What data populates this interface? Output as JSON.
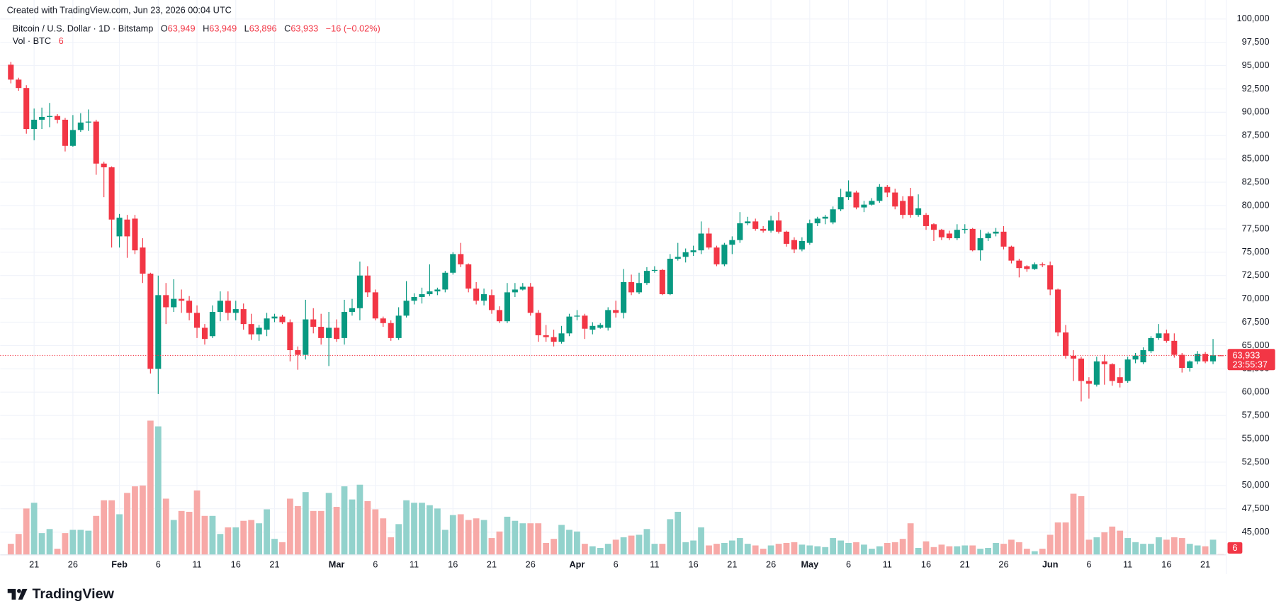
{
  "header": {
    "created": "Created with TradingView.com, Jun 23, 2026 00:04 UTC",
    "symbol": "Bitcoin / U.S. Dollar · 1D · Bitstamp",
    "ohlc": [
      {
        "label": "O",
        "value": "63,949"
      },
      {
        "label": "H",
        "value": "63,949"
      },
      {
        "label": "L",
        "value": "63,896"
      },
      {
        "label": "C",
        "value": "63,933"
      }
    ],
    "change": "−16 (−0.02%)",
    "volume_title": "Vol · BTC",
    "volume_value": "6",
    "last_price": "63,933",
    "countdown": "23:55:37",
    "volume_badge": "6"
  },
  "chart_data": {
    "type": "candlestick",
    "open": [
      95100,
      93500,
      92600,
      88200,
      89200,
      89500,
      89600,
      89200,
      86400,
      88100,
      88900,
      89000,
      84500,
      84100,
      76700,
      78500,
      78600,
      75500,
      72700,
      62500,
      70400,
      69100,
      70000,
      69800,
      68500,
      66900,
      66000,
      68600,
      69800,
      68500,
      68900,
      67300,
      66200,
      66700,
      67900,
      68100,
      67500,
      64500,
      64000,
      67800,
      67000,
      65800,
      66900,
      65800,
      68600,
      69000,
      72500,
      70700,
      67900,
      67400,
      65800,
      68200,
      69800,
      70200,
      70500,
      70800,
      71000,
      72800,
      74800,
      73700,
      71100,
      69800,
      70400,
      68800,
      67600,
      70700,
      71000,
      71300,
      68500,
      66100,
      65900,
      65400,
      66300,
      68100,
      68200,
      66700,
      66900,
      66900,
      68800,
      68500,
      71800,
      70700,
      71700,
      73000,
      73100,
      70500,
      74300,
      74500,
      75000,
      75200,
      77000,
      75500,
      73700,
      75800,
      76300,
      78100,
      78300,
      77500,
      77300,
      78400,
      77200,
      76300,
      75300,
      76000,
      78100,
      78600,
      78200,
      79600,
      80900,
      81400,
      79800,
      80100,
      80500,
      82000,
      81400,
      80500,
      81000,
      79000,
      79000,
      78000,
      77400,
      77000,
      76500,
      77400,
      77500,
      75200,
      76500,
      77000,
      77200,
      75600,
      74100,
      73500,
      73200,
      73700,
      73600,
      71000,
      66400,
      63900,
      63600,
      61200,
      60800,
      63300,
      63000,
      61600,
      61200,
      63500,
      63200,
      64400,
      65800,
      66300,
      65500,
      64000,
      62600,
      63300,
      64100,
      63300,
      63949
    ],
    "high": [
      95400,
      93700,
      92900,
      90400,
      90500,
      91000,
      89800,
      89400,
      89700,
      89900,
      90300,
      89200,
      84700,
      84200,
      79100,
      79000,
      79000,
      76500,
      72800,
      72500,
      71700,
      72100,
      71000,
      70300,
      69300,
      67300,
      69300,
      70800,
      70800,
      69800,
      69500,
      68400,
      67200,
      68500,
      68400,
      68300,
      67800,
      64900,
      69900,
      69000,
      68400,
      68600,
      67800,
      69900,
      70000,
      74000,
      73500,
      71000,
      68100,
      67700,
      69100,
      71900,
      70600,
      71200,
      73700,
      71200,
      73000,
      75000,
      76000,
      73800,
      71800,
      71100,
      71000,
      69200,
      71700,
      71700,
      71700,
      71700,
      68800,
      67200,
      66700,
      67100,
      68400,
      68800,
      68400,
      67500,
      67400,
      69100,
      69800,
      73200,
      72600,
      72800,
      73400,
      73500,
      73200,
      74800,
      76000,
      75400,
      75700,
      78300,
      77600,
      75700,
      76000,
      76700,
      79300,
      78800,
      78600,
      77800,
      78900,
      79300,
      77300,
      76600,
      76600,
      78500,
      78800,
      79000,
      79900,
      81800,
      82700,
      81600,
      80500,
      80800,
      82300,
      82200,
      81800,
      81000,
      81900,
      81200,
      79200,
      78100,
      77500,
      77300,
      78000,
      78000,
      77600,
      77400,
      77200,
      77600,
      77800,
      75700,
      74300,
      73600,
      73900,
      73900,
      74000,
      71100,
      67200,
      64500,
      63800,
      61600,
      63800,
      64000,
      63100,
      62600,
      63800,
      64200,
      64800,
      66000,
      67300,
      66700,
      66300,
      64200,
      63400,
      64400,
      64300,
      65700,
      63949
    ],
    "low": [
      93100,
      92300,
      87700,
      87000,
      88200,
      88400,
      88800,
      85800,
      86300,
      87900,
      88000,
      83300,
      80900,
      75500,
      75500,
      74400,
      74800,
      71700,
      62000,
      59800,
      67300,
      68600,
      68500,
      67700,
      65800,
      65100,
      65800,
      67600,
      67700,
      67700,
      66700,
      65600,
      65500,
      66000,
      67500,
      67300,
      63300,
      62400,
      63500,
      66300,
      65100,
      62800,
      65400,
      65100,
      68200,
      67700,
      70200,
      67700,
      67000,
      65500,
      65600,
      68000,
      69400,
      69500,
      70300,
      70400,
      70700,
      72600,
      73400,
      70700,
      69400,
      69300,
      68400,
      67400,
      67400,
      70200,
      70900,
      68200,
      65400,
      65400,
      64900,
      65200,
      66000,
      67700,
      65700,
      66200,
      66800,
      66600,
      68000,
      67900,
      70400,
      70500,
      71500,
      72800,
      70400,
      70400,
      74100,
      73900,
      74600,
      74800,
      75300,
      73500,
      73500,
      74800,
      76000,
      77900,
      77300,
      77100,
      77100,
      77000,
      75600,
      74900,
      75100,
      75800,
      77800,
      78000,
      78000,
      79400,
      80600,
      79600,
      79300,
      80000,
      80300,
      80900,
      79600,
      78600,
      78700,
      78800,
      77400,
      76200,
      76300,
      76300,
      76300,
      77000,
      75100,
      74100,
      76200,
      76700,
      75300,
      73800,
      72300,
      72900,
      73100,
      73400,
      70400,
      66000,
      63600,
      61200,
      59000,
      59300,
      60600,
      60800,
      60700,
      60500,
      61000,
      63100,
      63000,
      64200,
      65600,
      65300,
      63700,
      62100,
      62200,
      63000,
      63100,
      63000,
      63896
    ],
    "close": [
      93500,
      92600,
      88200,
      89200,
      89500,
      89600,
      89200,
      86400,
      88100,
      88900,
      89000,
      84500,
      84100,
      78500,
      78700,
      76700,
      75200,
      72700,
      62500,
      70400,
      69100,
      70000,
      69800,
      68500,
      66900,
      65700,
      68600,
      69800,
      68500,
      68900,
      67300,
      66200,
      66900,
      67900,
      68100,
      67500,
      64500,
      64000,
      67800,
      67000,
      65800,
      66900,
      65700,
      68600,
      69000,
      72500,
      70700,
      67900,
      67400,
      65800,
      68200,
      69800,
      70200,
      70500,
      70800,
      71000,
      72800,
      74800,
      73700,
      71100,
      69800,
      70500,
      68800,
      67600,
      70700,
      71000,
      71300,
      68500,
      66100,
      65900,
      65400,
      66300,
      68100,
      68200,
      66800,
      67100,
      67200,
      68800,
      68500,
      71800,
      70700,
      71700,
      73000,
      73100,
      70500,
      74300,
      74500,
      75000,
      75200,
      77000,
      75500,
      73700,
      75800,
      76300,
      78100,
      78300,
      77500,
      77300,
      78400,
      77200,
      75900,
      75300,
      76200,
      78100,
      78600,
      78800,
      79600,
      80900,
      81500,
      79800,
      80100,
      80500,
      82000,
      81400,
      79900,
      79000,
      79000,
      79700,
      77800,
      77400,
      76600,
      76500,
      77400,
      77500,
      75200,
      76500,
      77000,
      77200,
      75600,
      74100,
      73300,
      73200,
      73700,
      73600,
      71000,
      66400,
      63900,
      63600,
      61200,
      60900,
      63300,
      63000,
      61200,
      61000,
      63500,
      63900,
      64500,
      65800,
      66300,
      65500,
      64000,
      62600,
      63300,
      64100,
      63300,
      63949,
      63933
    ],
    "volume": [
      195,
      375,
      840,
      945,
      390,
      465,
      105,
      390,
      450,
      450,
      435,
      705,
      990,
      990,
      735,
      1125,
      1245,
      1260,
      2445,
      2340,
      1020,
      630,
      795,
      780,
      1170,
      705,
      705,
      375,
      495,
      495,
      615,
      630,
      570,
      825,
      285,
      225,
      1020,
      885,
      1140,
      795,
      795,
      1125,
      870,
      1245,
      1005,
      1275,
      975,
      825,
      660,
      315,
      555,
      990,
      945,
      945,
      900,
      840,
      450,
      720,
      735,
      630,
      660,
      630,
      300,
      420,
      690,
      615,
      570,
      570,
      570,
      210,
      285,
      540,
      450,
      420,
      195,
      150,
      120,
      195,
      270,
      315,
      345,
      360,
      465,
      195,
      195,
      645,
      780,
      225,
      255,
      495,
      165,
      195,
      210,
      255,
      300,
      195,
      165,
      105,
      165,
      195,
      210,
      225,
      180,
      165,
      150,
      135,
      300,
      255,
      210,
      225,
      180,
      105,
      150,
      210,
      225,
      285,
      570,
      120,
      240,
      135,
      180,
      150,
      150,
      165,
      165,
      105,
      120,
      210,
      195,
      270,
      225,
      105,
      60,
      105,
      360,
      585,
      585,
      1110,
      1065,
      270,
      315,
      405,
      510,
      435,
      300,
      225,
      195,
      195,
      315,
      270,
      315,
      300,
      195,
      165,
      150,
      270,
      6
    ],
    "up_color": "#089981",
    "down_color": "#f23645",
    "volume_up_color": "#92d2cc",
    "volume_down_color": "#f7a9a7",
    "xlim": [
      -1.37,
      156.66
    ],
    "xticks": [
      {
        "value": 3,
        "label": "21"
      },
      {
        "value": 8,
        "label": "26"
      },
      {
        "value": 14,
        "label": "Feb"
      },
      {
        "value": 19,
        "label": "6"
      },
      {
        "value": 24,
        "label": "11"
      },
      {
        "value": 29,
        "label": "16"
      },
      {
        "value": 34,
        "label": "21"
      },
      {
        "value": 42,
        "label": "Mar"
      },
      {
        "value": 47,
        "label": "6"
      },
      {
        "value": 52,
        "label": "11"
      },
      {
        "value": 57,
        "label": "16"
      },
      {
        "value": 62,
        "label": "21"
      },
      {
        "value": 67,
        "label": "26"
      },
      {
        "value": 73,
        "label": "Apr"
      },
      {
        "value": 78,
        "label": "6"
      },
      {
        "value": 83,
        "label": "11"
      },
      {
        "value": 88,
        "label": "16"
      },
      {
        "value": 93,
        "label": "21"
      },
      {
        "value": 98,
        "label": "26"
      },
      {
        "value": 103,
        "label": "May"
      },
      {
        "value": 108,
        "label": "6"
      },
      {
        "value": 113,
        "label": "11"
      },
      {
        "value": 118,
        "label": "16"
      },
      {
        "value": 123,
        "label": "21"
      },
      {
        "value": 128,
        "label": "26"
      },
      {
        "value": 134,
        "label": "Jun"
      },
      {
        "value": 139,
        "label": "6"
      },
      {
        "value": 144,
        "label": "11"
      },
      {
        "value": 149,
        "label": "16"
      },
      {
        "value": 154,
        "label": "21"
      }
    ],
    "ylim": [
      42600,
      100100
    ],
    "yticks": [
      {
        "value": 45000,
        "label": "45,000"
      },
      {
        "value": 47500,
        "label": "47,500"
      },
      {
        "value": 50000,
        "label": "50,000"
      },
      {
        "value": 52500,
        "label": "52,500"
      },
      {
        "value": 55000,
        "label": "55,000"
      },
      {
        "value": 57500,
        "label": "57,500"
      },
      {
        "value": 60000,
        "label": "60,000"
      },
      {
        "value": 62500,
        "label": "62,500"
      },
      {
        "value": 65000,
        "label": "65,000"
      },
      {
        "value": 67500,
        "label": "67,500"
      },
      {
        "value": 70000,
        "label": "70,000"
      },
      {
        "value": 72500,
        "label": "72,500"
      },
      {
        "value": 75000,
        "label": "75,000"
      },
      {
        "value": 77500,
        "label": "77,500"
      },
      {
        "value": 80000,
        "label": "80,000"
      },
      {
        "value": 82500,
        "label": "82,500"
      },
      {
        "value": 85000,
        "label": "85,000"
      },
      {
        "value": 87500,
        "label": "87,500"
      },
      {
        "value": 90000,
        "label": "90,000"
      },
      {
        "value": 92500,
        "label": "92,500"
      },
      {
        "value": 95000,
        "label": "95,000"
      },
      {
        "value": 97500,
        "label": "97,500"
      },
      {
        "value": 100000,
        "label": "100,000"
      }
    ],
    "y2lim": [
      0,
      9800
    ],
    "grid": true
  },
  "footer": {
    "brand": "TradingView"
  }
}
